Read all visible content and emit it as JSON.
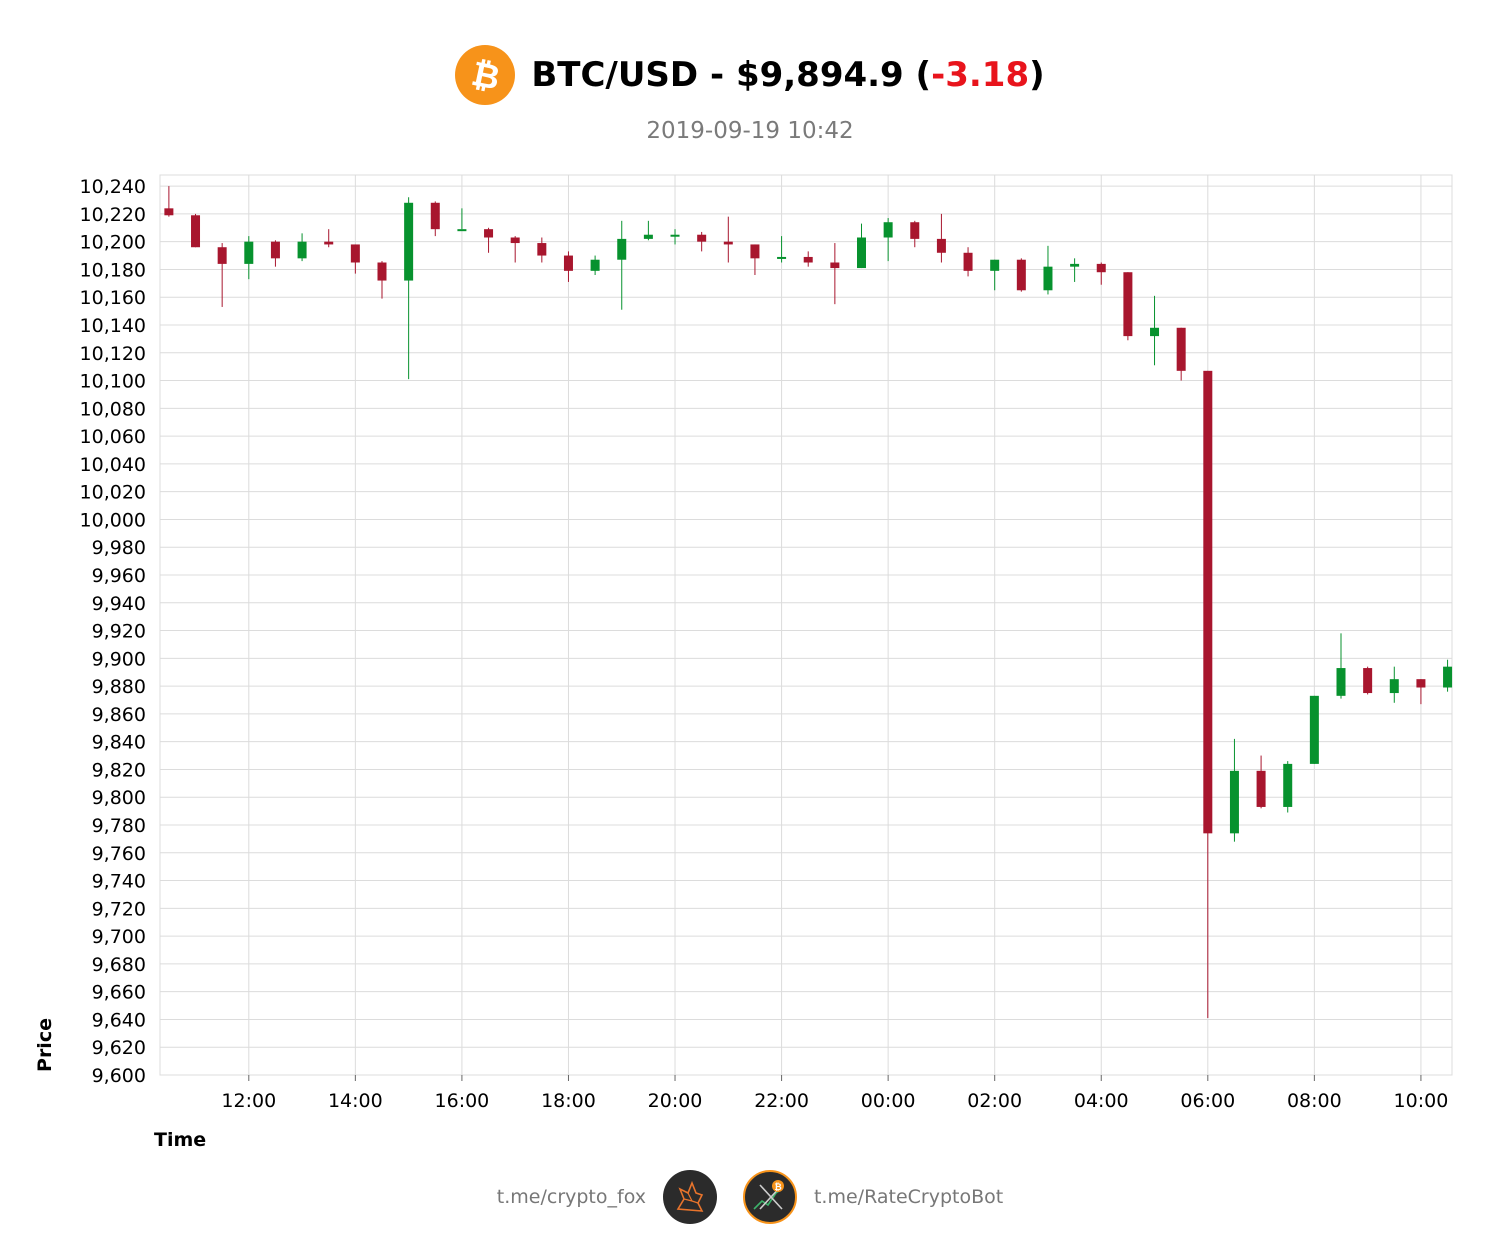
{
  "header": {
    "pair": "BTC/USD",
    "separator": " - ",
    "price": "$9,894.9",
    "open_paren": " (",
    "change": "-3.18",
    "close_paren": ")",
    "timestamp": "2019-09-19 10:42",
    "coin_icon": "bitcoin-icon"
  },
  "colors": {
    "up": "#07922e",
    "down": "#a8162e",
    "grid": "#dcdcdc",
    "change_negative": "#e8141c",
    "bitcoin_orange": "#f7931a"
  },
  "footer": {
    "left_link": "t.me/crypto_fox",
    "right_link": "t.me/RateCryptoBot",
    "left_icon": "fox-logo-icon",
    "right_icon": "bot-logo-icon"
  },
  "chart_data": {
    "type": "candlestick",
    "xlabel": "Time",
    "ylabel": "Price",
    "ylim": [
      9600,
      10248
    ],
    "yticks": [
      9600,
      9620,
      9640,
      9660,
      9680,
      9700,
      9720,
      9740,
      9760,
      9780,
      9800,
      9820,
      9840,
      9860,
      9880,
      9900,
      9920,
      9940,
      9960,
      9980,
      10000,
      10020,
      10040,
      10060,
      10080,
      10100,
      10120,
      10140,
      10160,
      10180,
      10200,
      10220,
      10240
    ],
    "xtick_labels": [
      "12:00",
      "14:00",
      "16:00",
      "18:00",
      "20:00",
      "22:00",
      "00:00",
      "02:00",
      "04:00",
      "06:00",
      "08:00",
      "10:00"
    ],
    "grid": true,
    "interval": "30 min",
    "candles": [
      {
        "t": "2019-09-18 10:30",
        "open": 10224,
        "high": 10240,
        "low": 10218,
        "close": 10219
      },
      {
        "t": "2019-09-18 11:00",
        "open": 10219,
        "high": 10220,
        "low": 10196,
        "close": 10196
      },
      {
        "t": "2019-09-18 11:30",
        "open": 10196,
        "high": 10199,
        "low": 10153,
        "close": 10184
      },
      {
        "t": "2019-09-18 12:00",
        "open": 10184,
        "high": 10204,
        "low": 10173,
        "close": 10200
      },
      {
        "t": "2019-09-18 12:30",
        "open": 10200,
        "high": 10201,
        "low": 10182,
        "close": 10188
      },
      {
        "t": "2019-09-18 13:00",
        "open": 10188,
        "high": 10206,
        "low": 10186,
        "close": 10200
      },
      {
        "t": "2019-09-18 13:30",
        "open": 10200,
        "high": 10209,
        "low": 10196,
        "close": 10198
      },
      {
        "t": "2019-09-18 14:00",
        "open": 10198,
        "high": 10198,
        "low": 10177,
        "close": 10185
      },
      {
        "t": "2019-09-18 14:30",
        "open": 10185,
        "high": 10186,
        "low": 10159,
        "close": 10172
      },
      {
        "t": "2019-09-18 15:00",
        "open": 10172,
        "high": 10232,
        "low": 10101,
        "close": 10228
      },
      {
        "t": "2019-09-18 15:30",
        "open": 10228,
        "high": 10229,
        "low": 10204,
        "close": 10209
      },
      {
        "t": "2019-09-18 16:00",
        "open": 10209,
        "high": 10224,
        "low": 10209,
        "close": 10209
      },
      {
        "t": "2019-09-18 16:30",
        "open": 10209,
        "high": 10210,
        "low": 10192,
        "close": 10203
      },
      {
        "t": "2019-09-18 17:00",
        "open": 10203,
        "high": 10204,
        "low": 10185,
        "close": 10199
      },
      {
        "t": "2019-09-18 17:30",
        "open": 10199,
        "high": 10203,
        "low": 10185,
        "close": 10190
      },
      {
        "t": "2019-09-18 18:00",
        "open": 10190,
        "high": 10193,
        "low": 10171,
        "close": 10179
      },
      {
        "t": "2019-09-18 18:30",
        "open": 10179,
        "high": 10190,
        "low": 10176,
        "close": 10187
      },
      {
        "t": "2019-09-18 19:00",
        "open": 10187,
        "high": 10215,
        "low": 10151,
        "close": 10202
      },
      {
        "t": "2019-09-18 19:30",
        "open": 10202,
        "high": 10215,
        "low": 10201,
        "close": 10205
      },
      {
        "t": "2019-09-18 20:00",
        "open": 10205,
        "high": 10209,
        "low": 10198,
        "close": 10205
      },
      {
        "t": "2019-09-18 20:30",
        "open": 10205,
        "high": 10207,
        "low": 10193,
        "close": 10200
      },
      {
        "t": "2019-09-18 21:00",
        "open": 10200,
        "high": 10218,
        "low": 10185,
        "close": 10198
      },
      {
        "t": "2019-09-18 21:30",
        "open": 10198,
        "high": 10198,
        "low": 10176,
        "close": 10188
      },
      {
        "t": "2019-09-18 22:00",
        "open": 10188,
        "high": 10204,
        "low": 10185,
        "close": 10189
      },
      {
        "t": "2019-09-18 22:30",
        "open": 10189,
        "high": 10193,
        "low": 10182,
        "close": 10185
      },
      {
        "t": "2019-09-18 23:00",
        "open": 10185,
        "high": 10199,
        "low": 10155,
        "close": 10181
      },
      {
        "t": "2019-09-18 23:30",
        "open": 10181,
        "high": 10213,
        "low": 10181,
        "close": 10203
      },
      {
        "t": "2019-09-19 00:00",
        "open": 10203,
        "high": 10217,
        "low": 10186,
        "close": 10214
      },
      {
        "t": "2019-09-19 00:30",
        "open": 10214,
        "high": 10215,
        "low": 10196,
        "close": 10202
      },
      {
        "t": "2019-09-19 01:00",
        "open": 10202,
        "high": 10220,
        "low": 10185,
        "close": 10192
      },
      {
        "t": "2019-09-19 01:30",
        "open": 10192,
        "high": 10196,
        "low": 10175,
        "close": 10179
      },
      {
        "t": "2019-09-19 02:00",
        "open": 10179,
        "high": 10187,
        "low": 10165,
        "close": 10187
      },
      {
        "t": "2019-09-19 02:30",
        "open": 10187,
        "high": 10188,
        "low": 10164,
        "close": 10165
      },
      {
        "t": "2019-09-19 03:00",
        "open": 10165,
        "high": 10197,
        "low": 10162,
        "close": 10182
      },
      {
        "t": "2019-09-19 03:30",
        "open": 10182,
        "high": 10188,
        "low": 10171,
        "close": 10184
      },
      {
        "t": "2019-09-19 04:00",
        "open": 10184,
        "high": 10185,
        "low": 10169,
        "close": 10178
      },
      {
        "t": "2019-09-19 04:30",
        "open": 10178,
        "high": 10178,
        "low": 10129,
        "close": 10132
      },
      {
        "t": "2019-09-19 05:00",
        "open": 10132,
        "high": 10161,
        "low": 10111,
        "close": 10138
      },
      {
        "t": "2019-09-19 05:30",
        "open": 10138,
        "high": 10138,
        "low": 10100,
        "close": 10107
      },
      {
        "t": "2019-09-19 06:00",
        "open": 10107,
        "high": 10107,
        "low": 9641,
        "close": 9774
      },
      {
        "t": "2019-09-19 06:30",
        "open": 9774,
        "high": 9842,
        "low": 9768,
        "close": 9819
      },
      {
        "t": "2019-09-19 07:00",
        "open": 9819,
        "high": 9830,
        "low": 9792,
        "close": 9793
      },
      {
        "t": "2019-09-19 07:30",
        "open": 9793,
        "high": 9826,
        "low": 9789,
        "close": 9824
      },
      {
        "t": "2019-09-19 08:00",
        "open": 9824,
        "high": 9873,
        "low": 9824,
        "close": 9873
      },
      {
        "t": "2019-09-19 08:30",
        "open": 9873,
        "high": 9918,
        "low": 9871,
        "close": 9893
      },
      {
        "t": "2019-09-19 09:00",
        "open": 9893,
        "high": 9894,
        "low": 9874,
        "close": 9875
      },
      {
        "t": "2019-09-19 09:30",
        "open": 9875,
        "high": 9894,
        "low": 9868,
        "close": 9885
      },
      {
        "t": "2019-09-19 10:00",
        "open": 9885,
        "high": 9885,
        "low": 9867,
        "close": 9879
      },
      {
        "t": "2019-09-19 10:30",
        "open": 9879,
        "high": 9899,
        "low": 9876,
        "close": 9894
      }
    ]
  }
}
